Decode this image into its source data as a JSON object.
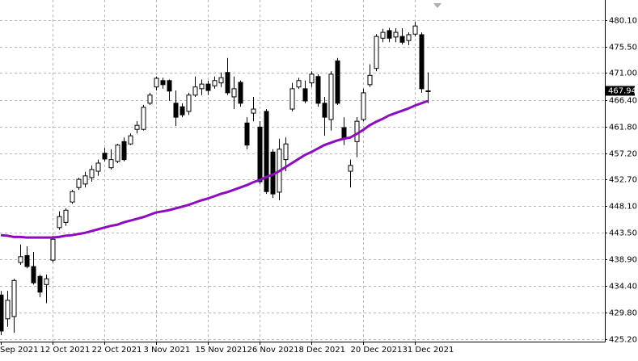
{
  "chart_data": {
    "type": "candlestick",
    "categories": [
      "Sep 2021",
      null,
      null,
      null,
      null,
      null,
      null,
      null,
      "12 Oct 2021",
      null,
      null,
      null,
      null,
      null,
      null,
      null,
      "22 Oct 2021",
      null,
      null,
      null,
      null,
      null,
      null,
      null,
      "3 Nov 2021",
      null,
      null,
      null,
      null,
      null,
      null,
      null,
      "15 Nov 2021",
      null,
      null,
      null,
      null,
      null,
      null,
      null,
      "26 Nov 2021",
      null,
      null,
      null,
      null,
      null,
      null,
      null,
      "8 Dec 2021",
      null,
      null,
      null,
      null,
      null,
      null,
      null,
      "20 Dec 2021",
      null,
      null,
      null,
      null,
      null,
      null,
      null,
      "31 Dec 2021",
      null,
      null
    ],
    "open": [
      432.8,
      428.7,
      429.1,
      438.4,
      439.6,
      437.7,
      436.0,
      434.6,
      438.8,
      444.4,
      445.3,
      448.8,
      451.3,
      451.9,
      453.0,
      454.1,
      457.2,
      454.7,
      455.8,
      459.2,
      458.8,
      461.3,
      461.3,
      465.8,
      468.6,
      469.7,
      469.7,
      465.8,
      465.2,
      464.4,
      467.2,
      468.3,
      469.1,
      468.8,
      469.3,
      471.1,
      466.9,
      469.4,
      462.4,
      464.1,
      461.7,
      464.4,
      457.4,
      450.5,
      456.1,
      464.8,
      468.6,
      468.3,
      469.3,
      470.4,
      465.8,
      463.0,
      473.1,
      461.6,
      454.1,
      459.2,
      463.0,
      469.0,
      471.8,
      477.0,
      478.3,
      477.2,
      477.3,
      476.6,
      477.7,
      477.6,
      467.9
    ],
    "high": [
      433.5,
      433.5,
      435.6,
      441.5,
      441.2,
      440.2,
      436.3,
      436.3,
      443.0,
      447.2,
      447.7,
      450.9,
      453.0,
      454.0,
      455.1,
      456.1,
      458.1,
      457.9,
      458.8,
      459.9,
      460.6,
      462.7,
      465.5,
      467.6,
      470.4,
      470.2,
      469.9,
      468.0,
      465.8,
      467.6,
      470.4,
      469.9,
      469.7,
      470.4,
      471.1,
      473.6,
      470.4,
      469.7,
      463.4,
      466.9,
      462.7,
      464.8,
      457.9,
      459.7,
      459.9,
      469.3,
      470.2,
      469.7,
      471.3,
      470.8,
      466.9,
      471.3,
      473.6,
      463.4,
      456.1,
      463.4,
      468.3,
      472.5,
      477.7,
      478.6,
      478.8,
      478.7,
      478.7,
      478.0,
      479.8,
      478.0,
      471.1
    ],
    "low": [
      425.9,
      427.3,
      426.3,
      438.0,
      437.4,
      434.6,
      432.4,
      431.4,
      438.4,
      444.0,
      444.7,
      448.5,
      450.9,
      451.3,
      452.3,
      453.3,
      455.8,
      454.4,
      455.5,
      455.8,
      458.6,
      460.6,
      461.1,
      465.5,
      468.0,
      468.3,
      466.2,
      461.9,
      463.4,
      463.8,
      466.9,
      467.2,
      467.2,
      468.3,
      468.6,
      467.2,
      464.8,
      465.2,
      457.9,
      462.7,
      451.9,
      450.2,
      449.5,
      449.1,
      454.1,
      464.4,
      468.3,
      465.8,
      468.6,
      465.2,
      460.2,
      461.1,
      465.5,
      458.6,
      451.3,
      456.5,
      462.7,
      468.6,
      471.3,
      476.3,
      476.3,
      476.3,
      475.9,
      475.8,
      477.3,
      467.6,
      465.8
    ],
    "close": [
      426.6,
      431.9,
      435.3,
      439.4,
      437.7,
      434.9,
      433.3,
      435.6,
      442.4,
      446.3,
      447.4,
      450.6,
      452.7,
      453.3,
      454.4,
      455.5,
      456.2,
      456.1,
      458.6,
      456.1,
      460.2,
      462.0,
      465.1,
      467.2,
      470.1,
      469.0,
      467.9,
      463.4,
      463.8,
      467.2,
      468.6,
      469.1,
      468.0,
      469.7,
      470.2,
      467.6,
      468.3,
      465.8,
      458.6,
      464.8,
      452.3,
      450.6,
      450.2,
      457.9,
      458.8,
      468.3,
      469.7,
      466.2,
      470.8,
      465.8,
      463.4,
      470.8,
      465.8,
      459.7,
      455.1,
      462.7,
      467.6,
      470.6,
      477.3,
      478.0,
      477.0,
      478.0,
      476.3,
      477.6,
      479.1,
      468.3,
      467.94
    ],
    "up_color": "#ffffff",
    "down_color": "#000000",
    "moving_average": {
      "color": "#8e0cc0",
      "values": [
        443.1,
        443.0,
        442.8,
        442.8,
        442.7,
        442.7,
        442.7,
        442.7,
        442.7,
        442.8,
        443.0,
        443.1,
        443.3,
        443.5,
        443.8,
        444.1,
        444.4,
        444.7,
        444.9,
        445.3,
        445.6,
        445.9,
        446.2,
        446.6,
        447.0,
        447.2,
        447.4,
        447.7,
        448.0,
        448.3,
        448.7,
        449.1,
        449.4,
        449.8,
        450.2,
        450.5,
        450.9,
        451.3,
        451.7,
        452.2,
        452.6,
        453.1,
        453.5,
        454.1,
        454.8,
        455.5,
        456.2,
        456.9,
        457.4,
        458.0,
        458.6,
        459.0,
        459.4,
        459.7,
        459.9,
        460.5,
        461.2,
        462.0,
        462.6,
        463.1,
        463.7,
        464.1,
        464.5,
        464.9,
        465.4,
        465.8,
        466.2
      ]
    },
    "ylim": [
      424.78,
      483.57
    ],
    "yticks": [
      {
        "value": 425.2,
        "label": "425.20"
      },
      {
        "value": 429.8,
        "label": "429.80"
      },
      {
        "value": 434.4,
        "label": "434.40"
      },
      {
        "value": 438.9,
        "label": "438.90"
      },
      {
        "value": 443.5,
        "label": "443.50"
      },
      {
        "value": 448.1,
        "label": "448.10"
      },
      {
        "value": 452.7,
        "label": "452.70"
      },
      {
        "value": 457.2,
        "label": "457.20"
      },
      {
        "value": 461.8,
        "label": "461.80"
      },
      {
        "value": 466.4,
        "label": "466.40"
      },
      {
        "value": 471,
        "label": "471.00"
      },
      {
        "value": 475.5,
        "label": "475.50"
      },
      {
        "value": 480.1,
        "label": "480.10"
      }
    ],
    "grid": true
  }
}
